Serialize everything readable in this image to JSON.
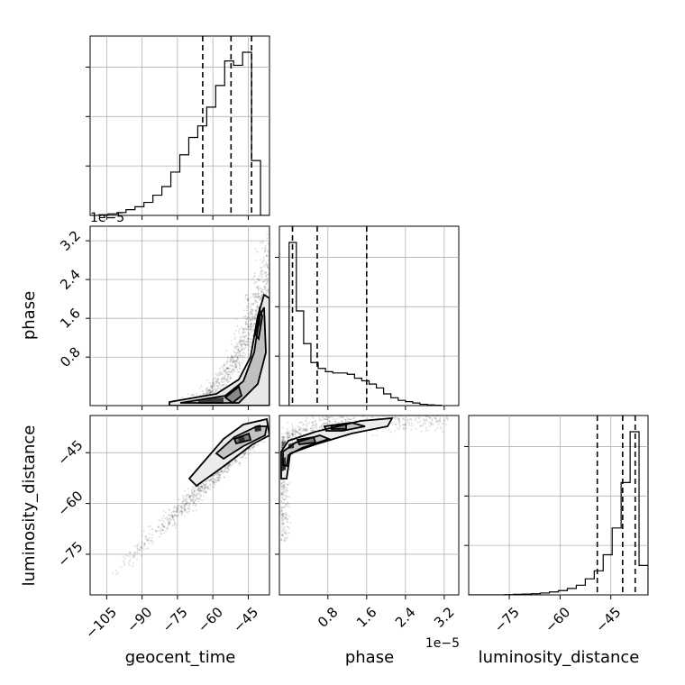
{
  "chart_data": {
    "type": "corner",
    "parameters": [
      "geocent_time",
      "phase",
      "luminosity_distance"
    ],
    "axis_labels": [
      "geocent_time",
      "phase",
      "luminosity_distance"
    ],
    "offset_text": "1e−5",
    "grid": true,
    "ranges": {
      "geocent_time": [
        -112,
        -36
      ],
      "phase": [
        -0.2,
        3.5
      ],
      "luminosity_distance": [
        -87,
        -34
      ]
    },
    "ticks": {
      "geocent_time": {
        "values": [
          -105,
          -90,
          -75,
          -60,
          -45
        ],
        "labels": [
          "−105",
          "−90",
          "−75",
          "−60",
          "−45"
        ]
      },
      "phase": {
        "values": [
          0.8,
          1.6,
          2.4,
          3.2
        ],
        "labels": [
          "0.8",
          "1.6",
          "2.4",
          "3.2"
        ]
      },
      "luminosity_distance": {
        "values": [
          -75,
          -60,
          -45
        ],
        "labels": [
          "−75",
          "−60",
          "−45"
        ]
      }
    },
    "histograms": {
      "geocent_time": {
        "bins": [
          -112,
          -108.2,
          -104.4,
          -100.6,
          -96.8,
          -93,
          -89.2,
          -85.4,
          -81.6,
          -77.8,
          -74,
          -70.2,
          -66.4,
          -62.6,
          -58.8,
          -55,
          -51.2,
          -47.4,
          -43.6,
          -39.8,
          -36
        ],
        "counts": [
          0,
          0.005,
          0.01,
          0.02,
          0.04,
          0.06,
          0.09,
          0.14,
          0.2,
          0.3,
          0.42,
          0.54,
          0.62,
          0.75,
          0.9,
          1.07,
          1.04,
          1.13,
          0.38,
          0,
          0
        ]
      },
      "phase": {
        "bins": [
          0,
          0.15,
          0.3,
          0.45,
          0.6,
          0.75,
          0.9,
          1.05,
          1.2,
          1.35,
          1.5,
          1.65,
          1.8,
          1.95,
          2.1,
          2.25,
          2.4,
          2.55,
          2.7,
          2.85,
          3.0,
          3.15
        ],
        "counts": [
          2.5,
          1.45,
          0.95,
          0.66,
          0.57,
          0.52,
          0.5,
          0.5,
          0.48,
          0.42,
          0.38,
          0.33,
          0.27,
          0.18,
          0.12,
          0.08,
          0.06,
          0.04,
          0.02,
          0.01,
          0.005
        ]
      },
      "luminosity_distance": {
        "bins": [
          -87,
          -84.35,
          -81.7,
          -79.05,
          -76.4,
          -73.75,
          -71.1,
          -68.45,
          -65.8,
          -63.15,
          -60.5,
          -57.85,
          -55.2,
          -52.55,
          -49.9,
          -47.25,
          -44.6,
          -41.95,
          -39.3,
          -36.65,
          -34
        ],
        "counts": [
          0,
          0,
          0,
          0,
          0.005,
          0.01,
          0.015,
          0.022,
          0.035,
          0.055,
          0.08,
          0.12,
          0.18,
          0.3,
          0.45,
          0.75,
          1.25,
          2.1,
          3.05,
          0.55,
          0
        ]
      }
    },
    "quantiles": {
      "geocent_time": [
        -64.3,
        -52.3,
        -43.6
      ],
      "phase": [
        0.07,
        0.58,
        1.6
      ],
      "luminosity_distance": [
        -49.0,
        -41.5,
        -37.8
      ]
    },
    "panels": [
      {
        "x": "geocent_time",
        "y": "phase",
        "type": "2d-density"
      },
      {
        "x": "geocent_time",
        "y": "luminosity_distance",
        "type": "2d-density"
      },
      {
        "x": "phase",
        "y": "luminosity_distance",
        "type": "2d-density"
      }
    ]
  }
}
